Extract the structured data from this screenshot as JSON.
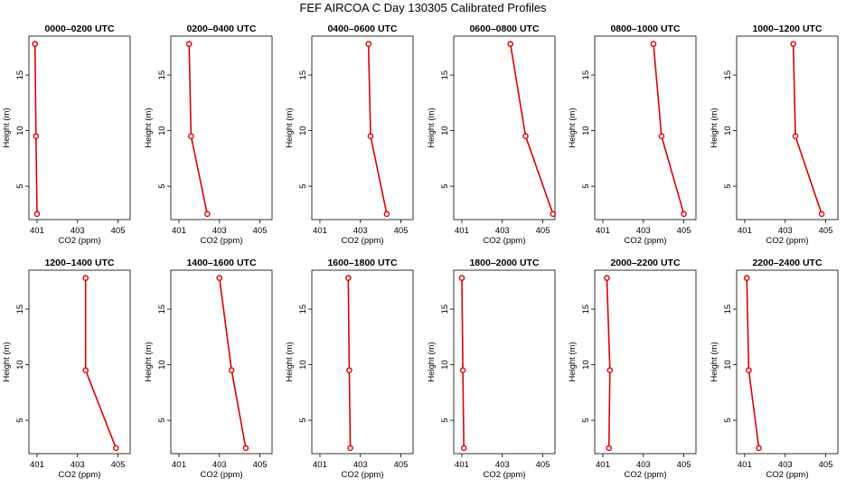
{
  "figure": {
    "title": "FEF AIRCOA C  Day 130305  Calibrated Profiles"
  },
  "colors": {
    "series": "#dd0000",
    "axes": "#000000"
  },
  "chart_data": [
    {
      "type": "line",
      "title": "0000–0200 UTC",
      "xlabel": "CO2 (ppm)",
      "ylabel": "Height (m)",
      "xlim": [
        400.6,
        405.6
      ],
      "ylim": [
        2,
        18.5
      ],
      "xticks": [
        401,
        403,
        405
      ],
      "yticks": [
        5,
        10,
        15
      ],
      "x": [
        400.9,
        400.95,
        401.0
      ],
      "y": [
        17.8,
        9.5,
        2.5
      ]
    },
    {
      "type": "line",
      "title": "0200–0400 UTC",
      "xlabel": "CO2 (ppm)",
      "ylabel": "Height (m)",
      "xlim": [
        400.6,
        405.6
      ],
      "ylim": [
        2,
        18.5
      ],
      "xticks": [
        401,
        403,
        405
      ],
      "yticks": [
        5,
        10,
        15
      ],
      "x": [
        401.5,
        401.6,
        402.4
      ],
      "y": [
        17.8,
        9.5,
        2.5
      ]
    },
    {
      "type": "line",
      "title": "0400–0600 UTC",
      "xlabel": "CO2 (ppm)",
      "ylabel": "Height (m)",
      "xlim": [
        400.6,
        405.6
      ],
      "ylim": [
        2,
        18.5
      ],
      "xticks": [
        401,
        403,
        405
      ],
      "yticks": [
        5,
        10,
        15
      ],
      "x": [
        403.4,
        403.5,
        404.3
      ],
      "y": [
        17.8,
        9.5,
        2.5
      ]
    },
    {
      "type": "line",
      "title": "0600–0800 UTC",
      "xlabel": "CO2 (ppm)",
      "ylabel": "Height (m)",
      "xlim": [
        400.6,
        405.6
      ],
      "ylim": [
        2,
        18.5
      ],
      "xticks": [
        401,
        403,
        405
      ],
      "yticks": [
        5,
        10,
        15
      ],
      "x": [
        403.4,
        404.15,
        405.5
      ],
      "y": [
        17.8,
        9.5,
        2.5
      ]
    },
    {
      "type": "line",
      "title": "0800–1000 UTC",
      "xlabel": "CO2 (ppm)",
      "ylabel": "Height (m)",
      "xlim": [
        400.6,
        405.6
      ],
      "ylim": [
        2,
        18.5
      ],
      "xticks": [
        401,
        403,
        405
      ],
      "yticks": [
        5,
        10,
        15
      ],
      "x": [
        403.5,
        403.9,
        405.0
      ],
      "y": [
        17.8,
        9.5,
        2.5
      ]
    },
    {
      "type": "line",
      "title": "1000–1200 UTC",
      "xlabel": "CO2 (ppm)",
      "ylabel": "Height (m)",
      "xlim": [
        400.6,
        405.6
      ],
      "ylim": [
        2,
        18.5
      ],
      "xticks": [
        401,
        403,
        405
      ],
      "yticks": [
        5,
        10,
        15
      ],
      "x": [
        403.4,
        403.5,
        404.8
      ],
      "y": [
        17.8,
        9.5,
        2.5
      ]
    },
    {
      "type": "line",
      "title": "1200–1400 UTC",
      "xlabel": "CO2 (ppm)",
      "ylabel": "Height (m)",
      "xlim": [
        400.6,
        405.6
      ],
      "ylim": [
        2,
        18.5
      ],
      "xticks": [
        401,
        403,
        405
      ],
      "yticks": [
        5,
        10,
        15
      ],
      "x": [
        403.4,
        403.4,
        404.9
      ],
      "y": [
        17.8,
        9.5,
        2.5
      ]
    },
    {
      "type": "line",
      "title": "1400–1600 UTC",
      "xlabel": "CO2 (ppm)",
      "ylabel": "Height (m)",
      "xlim": [
        400.6,
        405.6
      ],
      "ylim": [
        2,
        18.5
      ],
      "xticks": [
        401,
        403,
        405
      ],
      "yticks": [
        5,
        10,
        15
      ],
      "x": [
        403.0,
        403.6,
        404.3
      ],
      "y": [
        17.8,
        9.5,
        2.5
      ]
    },
    {
      "type": "line",
      "title": "1600–1800 UTC",
      "xlabel": "CO2 (ppm)",
      "ylabel": "Height (m)",
      "xlim": [
        400.6,
        405.6
      ],
      "ylim": [
        2,
        18.5
      ],
      "xticks": [
        401,
        403,
        405
      ],
      "yticks": [
        5,
        10,
        15
      ],
      "x": [
        402.4,
        402.45,
        402.5
      ],
      "y": [
        17.8,
        9.5,
        2.5
      ]
    },
    {
      "type": "line",
      "title": "1800–2000 UTC",
      "xlabel": "CO2 (ppm)",
      "ylabel": "Height (m)",
      "xlim": [
        400.6,
        405.6
      ],
      "ylim": [
        2,
        18.5
      ],
      "xticks": [
        401,
        403,
        405
      ],
      "yticks": [
        5,
        10,
        15
      ],
      "x": [
        401.0,
        401.05,
        401.1
      ],
      "y": [
        17.8,
        9.5,
        2.5
      ]
    },
    {
      "type": "line",
      "title": "2000–2200 UTC",
      "xlabel": "CO2 (ppm)",
      "ylabel": "Height (m)",
      "xlim": [
        400.6,
        405.6
      ],
      "ylim": [
        2,
        18.5
      ],
      "xticks": [
        401,
        403,
        405
      ],
      "yticks": [
        5,
        10,
        15
      ],
      "x": [
        401.2,
        401.35,
        401.3
      ],
      "y": [
        17.8,
        9.5,
        2.5
      ]
    },
    {
      "type": "line",
      "title": "2200–2400 UTC",
      "xlabel": "CO2 (ppm)",
      "ylabel": "Height (m)",
      "xlim": [
        400.6,
        405.6
      ],
      "ylim": [
        2,
        18.5
      ],
      "xticks": [
        401,
        403,
        405
      ],
      "yticks": [
        5,
        10,
        15
      ],
      "x": [
        401.1,
        401.2,
        401.7
      ],
      "y": [
        17.8,
        9.5,
        2.5
      ]
    }
  ]
}
